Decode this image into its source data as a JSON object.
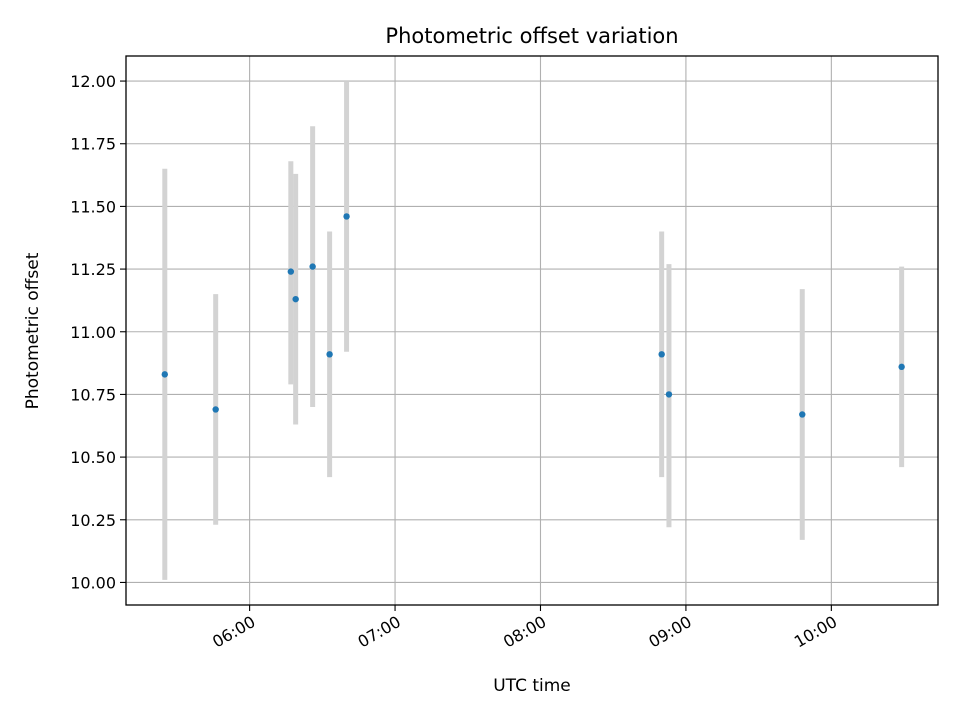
{
  "chart_data": {
    "type": "scatter",
    "title": "Photometric offset variation",
    "xlabel": "UTC time",
    "ylabel": "Photometric offset",
    "x_ticks": [
      "06:00",
      "07:00",
      "08:00",
      "09:00",
      "10:00"
    ],
    "x_tick_values": [
      "06:00",
      "07:00",
      "08:00",
      "09:00",
      "10:00"
    ],
    "y_ticks": [
      "10.00",
      "10.25",
      "10.50",
      "10.75",
      "11.00",
      "11.25",
      "11.50",
      "11.75",
      "12.00"
    ],
    "y_tick_values": [
      10.0,
      10.25,
      10.5,
      10.75,
      11.0,
      11.25,
      11.5,
      11.75,
      12.0
    ],
    "xlim": [
      "05:09",
      "10:44"
    ],
    "ylim": [
      9.91,
      12.1
    ],
    "grid": true,
    "marker_color": "#1f77b4",
    "errorbar_color": "#d3d3d3",
    "points": [
      {
        "time": "05:25",
        "y": 10.83,
        "y_low": 10.01,
        "y_high": 11.65
      },
      {
        "time": "05:46",
        "y": 10.69,
        "y_low": 10.23,
        "y_high": 11.15
      },
      {
        "time": "06:17",
        "y": 11.24,
        "y_low": 10.79,
        "y_high": 11.68
      },
      {
        "time": "06:19",
        "y": 11.13,
        "y_low": 10.63,
        "y_high": 11.63
      },
      {
        "time": "06:26",
        "y": 11.26,
        "y_low": 10.7,
        "y_high": 11.82
      },
      {
        "time": "06:33",
        "y": 10.91,
        "y_low": 10.42,
        "y_high": 11.4
      },
      {
        "time": "06:40",
        "y": 11.46,
        "y_low": 10.92,
        "y_high": 12.0
      },
      {
        "time": "08:50",
        "y": 10.91,
        "y_low": 10.42,
        "y_high": 11.4
      },
      {
        "time": "08:53",
        "y": 10.75,
        "y_low": 10.22,
        "y_high": 11.27
      },
      {
        "time": "09:48",
        "y": 10.67,
        "y_low": 10.17,
        "y_high": 11.17
      },
      {
        "time": "10:29",
        "y": 10.86,
        "y_low": 10.46,
        "y_high": 11.26
      }
    ]
  }
}
